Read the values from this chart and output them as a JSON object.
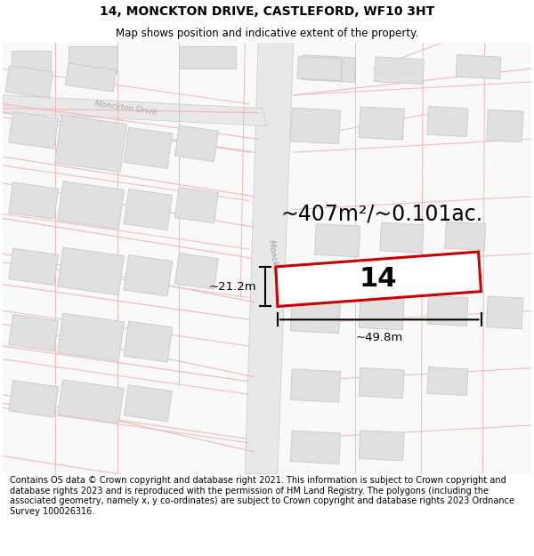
{
  "title": "14, MONCKTON DRIVE, CASTLEFORD, WF10 3HT",
  "subtitle": "Map shows position and indicative extent of the property.",
  "footer": "Contains OS data © Crown copyright and database right 2021. This information is subject to Crown copyright and database rights 2023 and is reproduced with the permission of HM Land Registry. The polygons (including the associated geometry, namely x, y co-ordinates) are subject to Crown copyright and database rights 2023 Ordnance Survey 100026316.",
  "area_label": "~407m²/~0.101ac.",
  "plot_number": "14",
  "dim_width": "~49.8m",
  "dim_height": "~21.2m",
  "road_label": "Monckton Drive",
  "plot_color": "#cc0000",
  "street_pink": "#f0b8b8",
  "building_fill": "#e0e0e0",
  "building_edge": "#c8c8c8",
  "road_fill": "#e8e8e8",
  "map_bg": "#f8f8f8",
  "title_fontsize": 10,
  "subtitle_fontsize": 8.5,
  "area_fontsize": 17,
  "number_fontsize": 22,
  "dim_fontsize": 9.5
}
